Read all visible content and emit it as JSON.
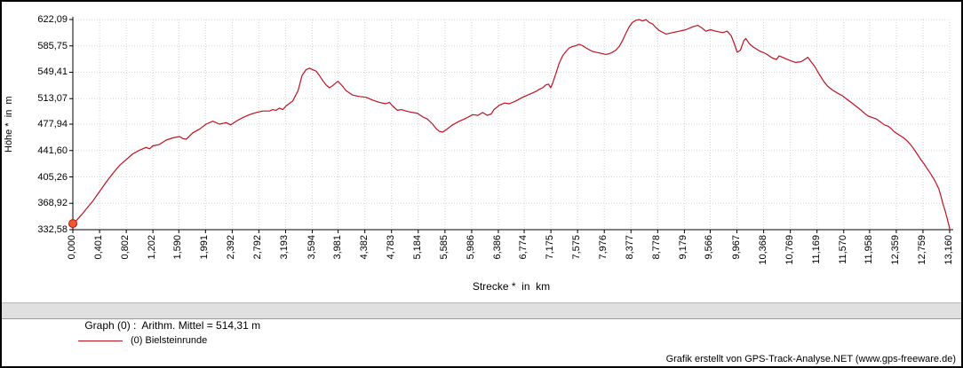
{
  "window": {
    "background": "#ffffff",
    "border_color": "#000000"
  },
  "info_bar": {
    "text": "Graph (0) :  Arithm. Mittel = 514,31 m",
    "background": "#e0e0e0"
  },
  "legend": {
    "label": "(0) Bielsteinrunde",
    "line_color": "#c01020"
  },
  "footer": {
    "text": "Grafik erstellt von GPS-Track-Analyse.NET (www.gps-freeware.de)"
  },
  "chart_data": {
    "type": "line",
    "title": "",
    "xlabel": "Strecke *  in  km",
    "ylabel": "Höhe *  in  m",
    "xlim": [
      0,
      13.16
    ],
    "ylim": [
      332.58,
      622.09
    ],
    "grid": true,
    "legend_position": "bottom-left",
    "axis_color": "#000000",
    "grid_color": "#d4d4d4",
    "y_tick_labels": [
      "622,09",
      "585,75",
      "549,41",
      "513,07",
      "477,94",
      "441,60",
      "405,26",
      "368,92",
      "332,58"
    ],
    "y_tick_values": [
      622.09,
      585.75,
      549.41,
      513.07,
      477.94,
      441.6,
      405.26,
      368.92,
      332.58
    ],
    "x_tick_labels": [
      "0,000",
      "0,401",
      "0,802",
      "1,202",
      "1,590",
      "1,991",
      "2,392",
      "2,792",
      "3,193",
      "3,594",
      "3,981",
      "4,382",
      "4,783",
      "5,184",
      "5,585",
      "5,986",
      "6,386",
      "6,774",
      "7,175",
      "7,575",
      "7,976",
      "8,377",
      "8,778",
      "9,179",
      "9,566",
      "9,967",
      "10,368",
      "10,769",
      "11,169",
      "11,570",
      "11,958",
      "12,359",
      "12,759",
      "13,160"
    ],
    "x_tick_values": [
      0,
      0.401,
      0.802,
      1.202,
      1.59,
      1.991,
      2.392,
      2.792,
      3.193,
      3.594,
      3.981,
      4.382,
      4.783,
      5.184,
      5.585,
      5.986,
      6.386,
      6.774,
      7.175,
      7.575,
      7.976,
      8.377,
      8.778,
      9.179,
      9.566,
      9.967,
      10.368,
      10.769,
      11.169,
      11.57,
      11.958,
      12.359,
      12.759,
      13.16
    ],
    "arithmetic_mean_m": "514,31",
    "start_marker": {
      "x": 0,
      "y": 341,
      "fill": "#f05a28",
      "stroke": "#b01020"
    },
    "series": [
      {
        "name": "(0) Bielsteinrunde",
        "color": "#c01020",
        "points": [
          [
            0,
            341
          ],
          [
            0.05,
            345
          ],
          [
            0.1,
            350
          ],
          [
            0.15,
            355
          ],
          [
            0.2,
            361
          ],
          [
            0.3,
            372
          ],
          [
            0.4,
            385
          ],
          [
            0.5,
            398
          ],
          [
            0.6,
            410
          ],
          [
            0.7,
            421
          ],
          [
            0.8,
            429
          ],
          [
            0.9,
            437
          ],
          [
            1.0,
            442
          ],
          [
            1.05,
            444
          ],
          [
            1.1,
            446
          ],
          [
            1.15,
            444
          ],
          [
            1.2,
            448
          ],
          [
            1.3,
            450
          ],
          [
            1.4,
            456
          ],
          [
            1.5,
            459
          ],
          [
            1.6,
            461
          ],
          [
            1.65,
            458
          ],
          [
            1.7,
            457
          ],
          [
            1.8,
            466
          ],
          [
            1.9,
            471
          ],
          [
            2.0,
            478
          ],
          [
            2.1,
            482
          ],
          [
            2.2,
            478
          ],
          [
            2.3,
            480
          ],
          [
            2.37,
            477
          ],
          [
            2.45,
            482
          ],
          [
            2.55,
            487
          ],
          [
            2.65,
            491
          ],
          [
            2.75,
            494
          ],
          [
            2.85,
            496
          ],
          [
            2.95,
            496
          ],
          [
            3.0,
            498
          ],
          [
            3.05,
            497
          ],
          [
            3.1,
            500
          ],
          [
            3.15,
            498
          ],
          [
            3.2,
            503
          ],
          [
            3.3,
            510
          ],
          [
            3.38,
            524
          ],
          [
            3.44,
            545
          ],
          [
            3.5,
            553
          ],
          [
            3.55,
            555
          ],
          [
            3.6,
            553
          ],
          [
            3.65,
            551
          ],
          [
            3.7,
            545
          ],
          [
            3.75,
            538
          ],
          [
            3.8,
            532
          ],
          [
            3.85,
            528
          ],
          [
            3.9,
            531
          ],
          [
            3.95,
            535
          ],
          [
            3.98,
            537
          ],
          [
            4.05,
            530
          ],
          [
            4.1,
            524
          ],
          [
            4.2,
            518
          ],
          [
            4.3,
            516
          ],
          [
            4.4,
            515
          ],
          [
            4.5,
            511
          ],
          [
            4.6,
            508
          ],
          [
            4.7,
            506
          ],
          [
            4.75,
            508
          ],
          [
            4.8,
            503
          ],
          [
            4.87,
            497
          ],
          [
            4.93,
            498
          ],
          [
            5.0,
            496
          ],
          [
            5.1,
            494
          ],
          [
            5.17,
            493
          ],
          [
            5.25,
            488
          ],
          [
            5.32,
            485
          ],
          [
            5.4,
            478
          ],
          [
            5.45,
            472
          ],
          [
            5.5,
            468
          ],
          [
            5.55,
            467
          ],
          [
            5.6,
            470
          ],
          [
            5.7,
            477
          ],
          [
            5.8,
            482
          ],
          [
            5.9,
            486
          ],
          [
            6.0,
            491
          ],
          [
            6.08,
            490
          ],
          [
            6.15,
            494
          ],
          [
            6.22,
            490
          ],
          [
            6.28,
            492
          ],
          [
            6.32,
            498
          ],
          [
            6.4,
            504
          ],
          [
            6.48,
            507
          ],
          [
            6.55,
            506
          ],
          [
            6.65,
            510
          ],
          [
            6.75,
            515
          ],
          [
            6.85,
            519
          ],
          [
            6.95,
            523
          ],
          [
            7.0,
            526
          ],
          [
            7.05,
            528
          ],
          [
            7.1,
            532
          ],
          [
            7.14,
            533
          ],
          [
            7.17,
            528
          ],
          [
            7.2,
            534
          ],
          [
            7.25,
            548
          ],
          [
            7.3,
            562
          ],
          [
            7.35,
            572
          ],
          [
            7.4,
            578
          ],
          [
            7.45,
            583
          ],
          [
            7.5,
            585
          ],
          [
            7.55,
            586
          ],
          [
            7.6,
            588
          ],
          [
            7.65,
            586
          ],
          [
            7.7,
            583
          ],
          [
            7.8,
            578
          ],
          [
            7.9,
            576
          ],
          [
            8.0,
            574
          ],
          [
            8.05,
            575
          ],
          [
            8.1,
            577
          ],
          [
            8.15,
            580
          ],
          [
            8.2,
            585
          ],
          [
            8.25,
            593
          ],
          [
            8.3,
            603
          ],
          [
            8.35,
            612
          ],
          [
            8.4,
            618
          ],
          [
            8.45,
            621
          ],
          [
            8.5,
            622
          ],
          [
            8.55,
            620
          ],
          [
            8.6,
            622
          ],
          [
            8.65,
            618
          ],
          [
            8.7,
            616
          ],
          [
            8.75,
            611
          ],
          [
            8.8,
            607
          ],
          [
            8.9,
            602
          ],
          [
            9.0,
            604
          ],
          [
            9.1,
            606
          ],
          [
            9.2,
            608
          ],
          [
            9.3,
            612
          ],
          [
            9.38,
            614
          ],
          [
            9.45,
            610
          ],
          [
            9.5,
            606
          ],
          [
            9.57,
            608
          ],
          [
            9.65,
            606
          ],
          [
            9.75,
            604
          ],
          [
            9.82,
            606
          ],
          [
            9.88,
            600
          ],
          [
            9.93,
            588
          ],
          [
            9.97,
            577
          ],
          [
            10.02,
            580
          ],
          [
            10.07,
            593
          ],
          [
            10.1,
            596
          ],
          [
            10.15,
            589
          ],
          [
            10.2,
            585
          ],
          [
            10.3,
            579
          ],
          [
            10.4,
            575
          ],
          [
            10.5,
            569
          ],
          [
            10.56,
            567
          ],
          [
            10.6,
            572
          ],
          [
            10.65,
            570
          ],
          [
            10.7,
            568
          ],
          [
            10.78,
            565
          ],
          [
            10.85,
            563
          ],
          [
            10.93,
            564
          ],
          [
            11.0,
            568
          ],
          [
            11.03,
            570
          ],
          [
            11.08,
            564
          ],
          [
            11.13,
            558
          ],
          [
            11.2,
            547
          ],
          [
            11.27,
            537
          ],
          [
            11.33,
            530
          ],
          [
            11.4,
            525
          ],
          [
            11.47,
            521
          ],
          [
            11.55,
            517
          ],
          [
            11.62,
            512
          ],
          [
            11.68,
            508
          ],
          [
            11.75,
            503
          ],
          [
            11.82,
            498
          ],
          [
            11.88,
            493
          ],
          [
            11.94,
            489
          ],
          [
            12.0,
            487
          ],
          [
            12.06,
            485
          ],
          [
            12.12,
            481
          ],
          [
            12.18,
            477
          ],
          [
            12.24,
            475
          ],
          [
            12.28,
            472
          ],
          [
            12.32,
            468
          ],
          [
            12.37,
            465
          ],
          [
            12.42,
            462
          ],
          [
            12.47,
            459
          ],
          [
            12.52,
            455
          ],
          [
            12.57,
            450
          ],
          [
            12.62,
            444
          ],
          [
            12.67,
            437
          ],
          [
            12.72,
            430
          ],
          [
            12.77,
            424
          ],
          [
            12.82,
            417
          ],
          [
            12.87,
            410
          ],
          [
            12.92,
            403
          ],
          [
            12.96,
            396
          ],
          [
            13.0,
            388
          ],
          [
            13.03,
            378
          ],
          [
            13.06,
            368
          ],
          [
            13.09,
            359
          ],
          [
            13.12,
            349
          ],
          [
            13.16,
            334
          ]
        ]
      }
    ]
  }
}
